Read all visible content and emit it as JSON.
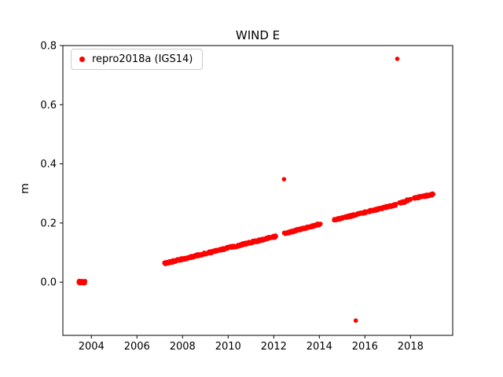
{
  "window": {
    "title": "WIND E"
  },
  "chart_data": {
    "type": "scatter",
    "title": "WIND E",
    "xlabel": "",
    "ylabel": "m",
    "grid": false,
    "marker_color": "#ff0000",
    "marker_radius": 2.8,
    "axis_color": "#000000",
    "background_color": "#ffffff",
    "xlim": [
      2002.75,
      2019.85
    ],
    "ylim": [
      -0.18,
      0.8
    ],
    "xticks": [
      2004,
      2006,
      2008,
      2010,
      2012,
      2014,
      2016,
      2018
    ],
    "xtick_labels": [
      "2004",
      "2006",
      "2008",
      "2010",
      "2012",
      "2014",
      "2016",
      "2018"
    ],
    "yticks": [
      0.0,
      0.2,
      0.4,
      0.6,
      0.8
    ],
    "ytick_labels": [
      "0.0",
      "0.2",
      "0.4",
      "0.6",
      "0.8"
    ],
    "legend": {
      "position": "upper left",
      "entries": [
        {
          "label": "repro2018a (IGS14)",
          "marker": "dot",
          "color": "#ff0000"
        }
      ]
    },
    "series": [
      {
        "name": "repro2018a (IGS14)",
        "color": "#ff0000",
        "dense_segments": [
          {
            "x_start": 2003.45,
            "x_end": 2003.72,
            "y_start": 0.0,
            "y_end": 0.0,
            "points": 40,
            "y_jitter": 0.004
          },
          {
            "x_start": 2007.2,
            "x_end": 2012.1,
            "y_start": 0.063,
            "y_end": 0.155,
            "points": 300,
            "y_jitter": 0.0035
          },
          {
            "x_start": 2012.45,
            "x_end": 2014.05,
            "y_start": 0.164,
            "y_end": 0.197,
            "points": 110,
            "y_jitter": 0.003
          },
          {
            "x_start": 2014.65,
            "x_end": 2017.35,
            "y_start": 0.21,
            "y_end": 0.262,
            "points": 180,
            "y_jitter": 0.003
          },
          {
            "x_start": 2017.5,
            "x_end": 2018.0,
            "y_start": 0.266,
            "y_end": 0.28,
            "points": 25,
            "y_jitter": 0.004
          },
          {
            "x_start": 2018.15,
            "x_end": 2019.0,
            "y_start": 0.284,
            "y_end": 0.297,
            "points": 60,
            "y_jitter": 0.003
          }
        ],
        "outlier_points": [
          {
            "x": 2012.45,
            "y": 0.348
          },
          {
            "x": 2015.6,
            "y": -0.13
          },
          {
            "x": 2017.42,
            "y": 0.755
          }
        ]
      }
    ]
  }
}
